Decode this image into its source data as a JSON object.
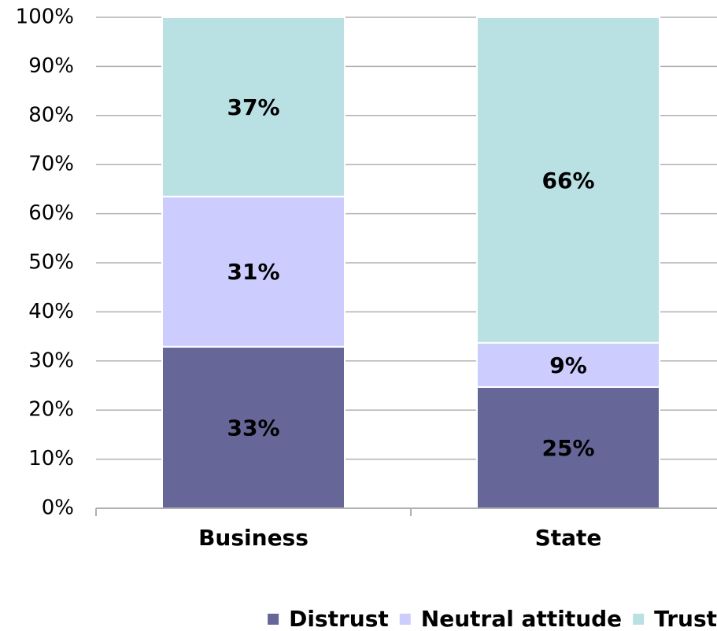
{
  "chart_data": {
    "type": "stacked_bar",
    "categories": [
      "Business",
      "State"
    ],
    "series": [
      {
        "name": "Distrust",
        "color": "#666699",
        "values": [
          32.9,
          24.7
        ],
        "value_labels": [
          "33%",
          "25%"
        ]
      },
      {
        "name": "Neutral attitude",
        "color": "#ccccff",
        "values": [
          30.6,
          9.0
        ],
        "value_labels": [
          "31%",
          "9%"
        ]
      },
      {
        "name": "Trust",
        "color": "#b9e0e3",
        "values": [
          36.5,
          66.3
        ],
        "value_labels": [
          "37%",
          "66%"
        ]
      }
    ],
    "ylim": [
      0,
      100
    ],
    "yticks": [
      {
        "value": 0,
        "label": "0%"
      },
      {
        "value": 10,
        "label": "10%"
      },
      {
        "value": 20,
        "label": "20%"
      },
      {
        "value": 30,
        "label": "30%"
      },
      {
        "value": 40,
        "label": "40%"
      },
      {
        "value": 50,
        "label": "50%"
      },
      {
        "value": 60,
        "label": "60%"
      },
      {
        "value": 70,
        "label": "70%"
      },
      {
        "value": 80,
        "label": "80%"
      },
      {
        "value": 90,
        "label": "90%"
      },
      {
        "value": 100,
        "label": "100%"
      }
    ],
    "grid": true,
    "legend": "bottom"
  }
}
